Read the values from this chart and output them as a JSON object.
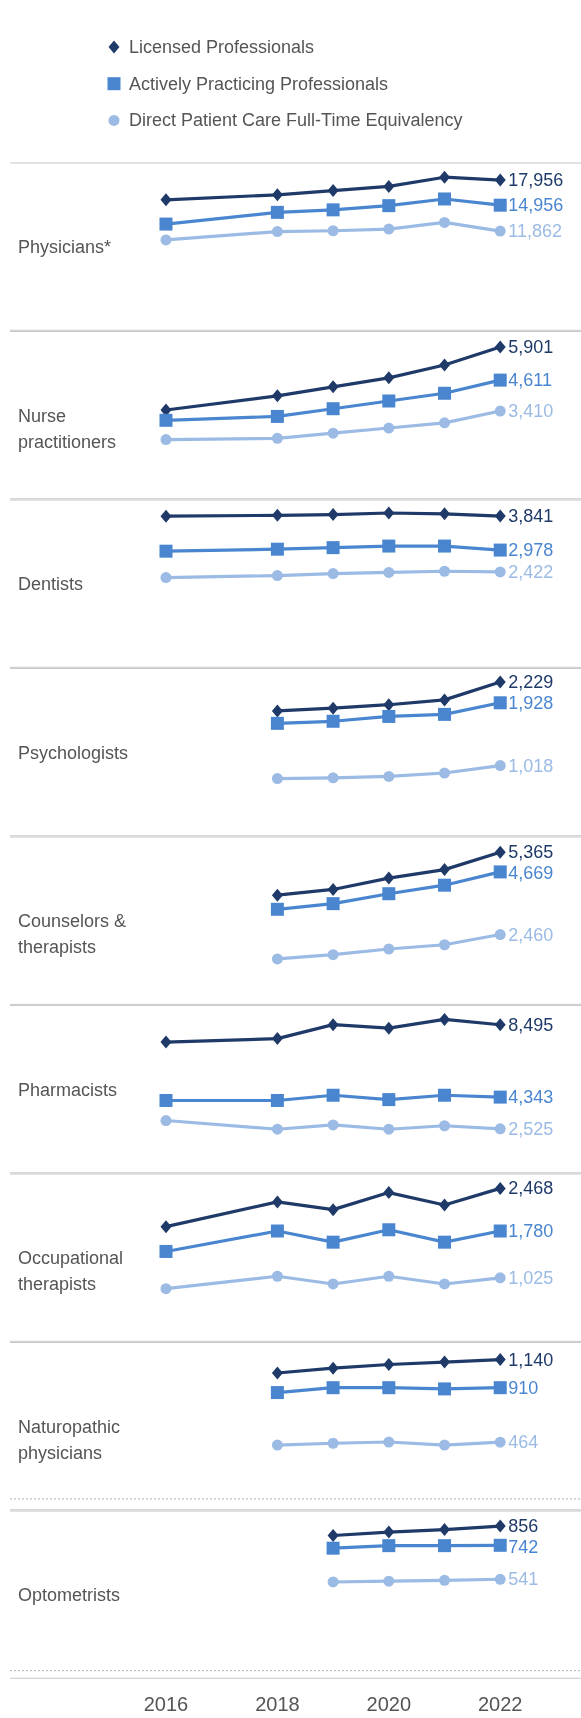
{
  "chart_data": [
    {
      "type": "line",
      "title": "Physicians*",
      "x": [
        2016,
        2018,
        2019,
        2020,
        2021,
        2022
      ],
      "xlim": [
        2013.2,
        2023.45
      ],
      "ylim": [
        0,
        20000
      ],
      "tick_labels": false,
      "legend": "top",
      "series": [
        {
          "name": "Licensed Professionals",
          "color": "#1f3a68",
          "marker": "diamond",
          "values": [
            15600,
            16200,
            16700,
            17200,
            18300,
            17956
          ],
          "value_labels": [
            null,
            null,
            null,
            null,
            null,
            "17,956"
          ]
        },
        {
          "name": "Actively Practicing Professionals",
          "color": "#4a86d0",
          "marker": "square",
          "values": [
            12700,
            14100,
            14400,
            14900,
            15700,
            14956
          ],
          "value_labels": [
            null,
            null,
            null,
            null,
            null,
            "14,956"
          ]
        },
        {
          "name": "Direct Patient Care Full-Time Equivalency",
          "color": "#9bbbe5",
          "marker": "circle",
          "values": [
            10800,
            11800,
            11900,
            12100,
            12900,
            11862
          ],
          "value_labels": [
            null,
            null,
            null,
            null,
            null,
            "11,862"
          ]
        }
      ]
    },
    {
      "type": "line",
      "title": "Nurse practitioners",
      "x": [
        2016,
        2018,
        2019,
        2020,
        2021,
        2022
      ],
      "xlim": [
        2013.2,
        2023.45
      ],
      "ylim": [
        0,
        6500
      ],
      "tick_labels": false,
      "series": [
        {
          "color": "#1f3a68",
          "marker": "diamond",
          "values": [
            3450,
            4000,
            4350,
            4700,
            5200,
            5901
          ],
          "value_labels": [
            null,
            null,
            null,
            null,
            null,
            "5,901"
          ]
        },
        {
          "color": "#4a86d0",
          "marker": "square",
          "values": [
            3050,
            3200,
            3500,
            3800,
            4100,
            4611
          ],
          "value_labels": [
            null,
            null,
            null,
            null,
            null,
            "4,611"
          ]
        },
        {
          "color": "#9bbbe5",
          "marker": "circle",
          "values": [
            2300,
            2350,
            2550,
            2750,
            2950,
            3410
          ],
          "value_labels": [
            null,
            null,
            null,
            null,
            null,
            "3,410"
          ]
        }
      ]
    },
    {
      "type": "line",
      "title": "Dentists",
      "x": [
        2016,
        2018,
        2019,
        2020,
        2021,
        2022
      ],
      "xlim": [
        2013.2,
        2023.45
      ],
      "ylim": [
        0,
        4250
      ],
      "tick_labels": false,
      "series": [
        {
          "color": "#1f3a68",
          "marker": "diamond",
          "values": [
            3840,
            3860,
            3880,
            3920,
            3900,
            3841
          ],
          "value_labels": [
            null,
            null,
            null,
            null,
            null,
            "3,841"
          ]
        },
        {
          "color": "#4a86d0",
          "marker": "square",
          "values": [
            2950,
            3000,
            3040,
            3080,
            3080,
            2978
          ],
          "value_labels": [
            null,
            null,
            null,
            null,
            null,
            "2,978"
          ]
        },
        {
          "color": "#9bbbe5",
          "marker": "circle",
          "values": [
            2280,
            2330,
            2380,
            2410,
            2440,
            2422
          ],
          "value_labels": [
            null,
            null,
            null,
            null,
            null,
            "2,422"
          ]
        }
      ]
    },
    {
      "type": "line",
      "title": "Psychologists",
      "x": [
        2018,
        2019,
        2020,
        2021,
        2022
      ],
      "xlim": [
        2013.2,
        2023.45
      ],
      "ylim": [
        0,
        2425
      ],
      "tick_labels": false,
      "series": [
        {
          "color": "#1f3a68",
          "marker": "diamond",
          "values": [
            1810,
            1850,
            1900,
            1970,
            2229
          ],
          "value_labels": [
            null,
            null,
            null,
            null,
            "2,229"
          ]
        },
        {
          "color": "#4a86d0",
          "marker": "square",
          "values": [
            1630,
            1660,
            1730,
            1760,
            1928
          ],
          "value_labels": [
            null,
            null,
            null,
            null,
            "1,928"
          ]
        },
        {
          "color": "#9bbbe5",
          "marker": "circle",
          "values": [
            830,
            840,
            860,
            910,
            1018
          ],
          "value_labels": [
            null,
            null,
            null,
            null,
            "1,018"
          ]
        }
      ]
    },
    {
      "type": "line",
      "title": "Counselors & therapists",
      "x": [
        2018,
        2019,
        2020,
        2021,
        2022
      ],
      "xlim": [
        2013.2,
        2023.45
      ],
      "ylim": [
        0,
        5900
      ],
      "tick_labels": false,
      "series": [
        {
          "color": "#1f3a68",
          "marker": "diamond",
          "values": [
            3850,
            4050,
            4450,
            4750,
            5365
          ],
          "value_labels": [
            null,
            null,
            null,
            null,
            "5,365"
          ]
        },
        {
          "color": "#4a86d0",
          "marker": "square",
          "values": [
            3350,
            3550,
            3900,
            4200,
            4669
          ],
          "value_labels": [
            null,
            null,
            null,
            null,
            "4,669"
          ]
        },
        {
          "color": "#9bbbe5",
          "marker": "circle",
          "values": [
            1600,
            1750,
            1950,
            2100,
            2460
          ],
          "value_labels": [
            null,
            null,
            null,
            null,
            "2,460"
          ]
        }
      ]
    },
    {
      "type": "line",
      "title": "Pharmacists",
      "x": [
        2016,
        2018,
        2019,
        2020,
        2021,
        2022
      ],
      "xlim": [
        2013.2,
        2023.45
      ],
      "ylim": [
        0,
        9600
      ],
      "tick_labels": false,
      "series": [
        {
          "color": "#1f3a68",
          "marker": "diamond",
          "values": [
            7500,
            7700,
            8500,
            8300,
            8800,
            8495
          ],
          "value_labels": [
            null,
            null,
            null,
            null,
            null,
            "8,495"
          ]
        },
        {
          "color": "#4a86d0",
          "marker": "square",
          "values": [
            4150,
            4150,
            4450,
            4200,
            4450,
            4343
          ],
          "value_labels": [
            null,
            null,
            null,
            null,
            null,
            "4,343"
          ]
        },
        {
          "color": "#9bbbe5",
          "marker": "circle",
          "values": [
            3000,
            2500,
            2750,
            2500,
            2700,
            2525
          ],
          "value_labels": [
            null,
            null,
            null,
            null,
            null,
            "2,525"
          ]
        }
      ]
    },
    {
      "type": "line",
      "title": "Occupational therapists",
      "x": [
        2016,
        2018,
        2019,
        2020,
        2021,
        2022
      ],
      "xlim": [
        2013.2,
        2023.45
      ],
      "ylim": [
        0,
        2700
      ],
      "tick_labels": false,
      "series": [
        {
          "color": "#1f3a68",
          "marker": "diamond",
          "values": [
            1850,
            2250,
            2125,
            2400,
            2200,
            2468
          ],
          "value_labels": [
            null,
            null,
            null,
            null,
            null,
            "2,468"
          ]
        },
        {
          "color": "#4a86d0",
          "marker": "square",
          "values": [
            1450,
            1780,
            1600,
            1800,
            1600,
            1780
          ],
          "value_labels": [
            null,
            null,
            null,
            null,
            null,
            "1,780"
          ]
        },
        {
          "color": "#9bbbe5",
          "marker": "circle",
          "values": [
            850,
            1050,
            925,
            1050,
            925,
            1025
          ],
          "value_labels": [
            null,
            null,
            null,
            null,
            null,
            "1,025"
          ]
        }
      ]
    },
    {
      "type": "line",
      "title": "Naturopathic physicians",
      "x": [
        2018,
        2019,
        2020,
        2021,
        2022
      ],
      "xlim": [
        2013.2,
        2023.45
      ],
      "ylim": [
        -90,
        1280
      ],
      "tick_labels": false,
      "ref_lines": [
        {
          "axis": "y",
          "value": 0,
          "line_style": "dotted",
          "color": "#bfbfbf"
        }
      ],
      "series": [
        {
          "color": "#1f3a68",
          "marker": "diamond",
          "values": [
            1030,
            1070,
            1100,
            1120,
            1140
          ],
          "value_labels": [
            null,
            null,
            null,
            null,
            "1,140"
          ]
        },
        {
          "color": "#4a86d0",
          "marker": "square",
          "values": [
            870,
            910,
            910,
            900,
            910
          ],
          "value_labels": [
            null,
            null,
            null,
            null,
            "910"
          ]
        },
        {
          "color": "#9bbbe5",
          "marker": "circle",
          "values": [
            440,
            455,
            465,
            440,
            464
          ],
          "value_labels": [
            null,
            null,
            null,
            null,
            "464"
          ]
        }
      ]
    },
    {
      "type": "line",
      "title": "Optometrists",
      "x": [
        2019,
        2020,
        2021,
        2022
      ],
      "xlim": [
        2013.2,
        2023.45
      ],
      "xticks": [
        2016,
        2018,
        2020,
        2022
      ],
      "ylim": [
        -45,
        945
      ],
      "tick_labels": "x",
      "ref_lines": [
        {
          "axis": "y",
          "value": 0,
          "line_style": "dotted",
          "color": "#bfbfbf"
        }
      ],
      "series": [
        {
          "color": "#1f3a68",
          "marker": "diamond",
          "values": [
            800,
            820,
            835,
            856
          ],
          "value_labels": [
            null,
            null,
            null,
            "856"
          ]
        },
        {
          "color": "#4a86d0",
          "marker": "square",
          "values": [
            725,
            740,
            740,
            742
          ],
          "value_labels": [
            null,
            null,
            null,
            "742"
          ]
        },
        {
          "color": "#9bbbe5",
          "marker": "circle",
          "values": [
            525,
            530,
            535,
            541
          ],
          "value_labels": [
            null,
            null,
            null,
            "541"
          ]
        }
      ]
    }
  ]
}
